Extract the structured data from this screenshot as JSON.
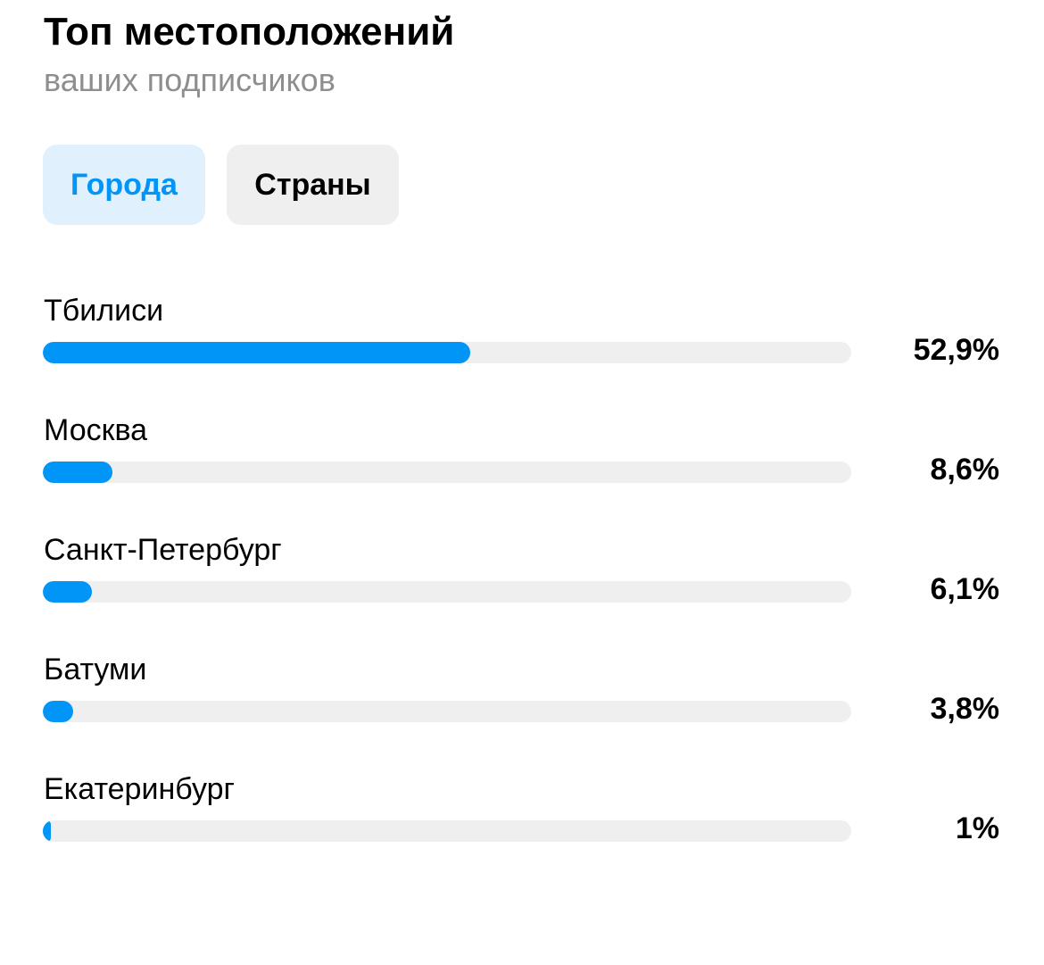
{
  "header": {
    "title": "Топ местоположений",
    "subtitle": "ваших подписчиков"
  },
  "tabs": [
    {
      "label": "Города",
      "active": true
    },
    {
      "label": "Страны",
      "active": false
    }
  ],
  "colors": {
    "accent": "#0095f6",
    "active_tab_bg": "#e0f1fd",
    "inactive_tab_bg": "#efefef",
    "track": "#efefef",
    "subtitle": "#8e8e8e"
  },
  "locations": [
    {
      "name": "Тбилиси",
      "percent_label": "52,9%",
      "value": 52.9
    },
    {
      "name": "Москва",
      "percent_label": "8,6%",
      "value": 8.6
    },
    {
      "name": "Санкт-Петербург",
      "percent_label": "6,1%",
      "value": 6.1
    },
    {
      "name": "Батуми",
      "percent_label": "3,8%",
      "value": 3.8
    },
    {
      "name": "Екатеринбург",
      "percent_label": "1%",
      "value": 1
    }
  ]
}
